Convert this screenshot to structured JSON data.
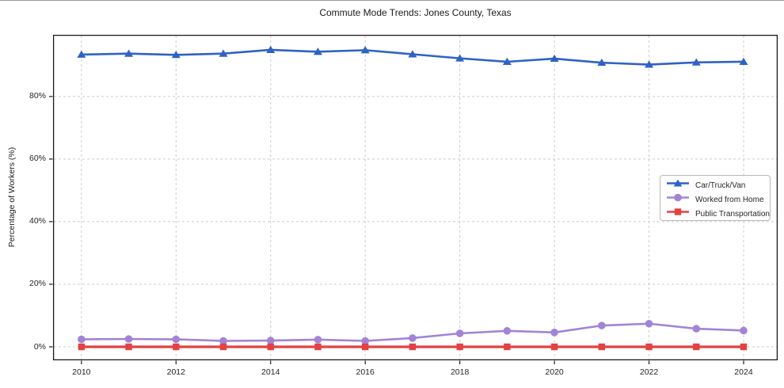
{
  "title": "Commute Mode Trends: Jones County, Texas",
  "chart_data": {
    "type": "line",
    "title": "Commute Mode Trends: Jones County, Texas",
    "xlabel": "",
    "ylabel": "Percentage of Workers (%)",
    "x": [
      2010,
      2011,
      2012,
      2013,
      2014,
      2015,
      2016,
      2017,
      2018,
      2019,
      2020,
      2021,
      2022,
      2023,
      2024
    ],
    "series": [
      {
        "name": "Car/Truck/Van",
        "color": "#2f62c5",
        "marker": "triangle",
        "line_width": 2.6,
        "values": [
          93.4,
          93.7,
          93.3,
          93.7,
          94.9,
          94.3,
          94.8,
          93.5,
          92.2,
          91.1,
          92.1,
          90.8,
          90.2,
          90.9,
          91.1
        ]
      },
      {
        "name": "Worked from Home",
        "color": "#a184d7",
        "marker": "circle",
        "line_width": 2.6,
        "values": [
          2.4,
          2.5,
          2.4,
          1.9,
          2.0,
          2.3,
          1.9,
          2.8,
          4.3,
          5.1,
          4.6,
          6.8,
          7.4,
          5.8,
          5.2
        ]
      },
      {
        "name": "Public Transportation",
        "color": "#e24242",
        "marker": "square",
        "line_width": 3.2,
        "values": [
          0.0,
          0.0,
          0.0,
          0.0,
          0.0,
          0.0,
          0.0,
          0.0,
          0.0,
          0.0,
          0.0,
          0.0,
          0.0,
          0.0,
          0.0
        ]
      }
    ],
    "yticks": {
      "values": [
        0,
        20,
        40,
        60,
        80
      ],
      "labels": [
        "0%",
        "20%",
        "40%",
        "60%",
        "80%"
      ]
    },
    "xticks": {
      "values": [
        2010,
        2012,
        2014,
        2016,
        2018,
        2020,
        2022,
        2024
      ],
      "labels": [
        "2010",
        "2012",
        "2014",
        "2016",
        "2018",
        "2020",
        "2022",
        "2024"
      ]
    },
    "ylim": [
      -4.3,
      99.7
    ],
    "xlim": [
      2009.4,
      2024.72
    ],
    "grid": true,
    "grid_style": "dashed",
    "grid_color": "#cccccc",
    "frame_color": "#1a1a1a",
    "legend_position": "center-right",
    "legend_border_color": "#b8b8b8"
  }
}
